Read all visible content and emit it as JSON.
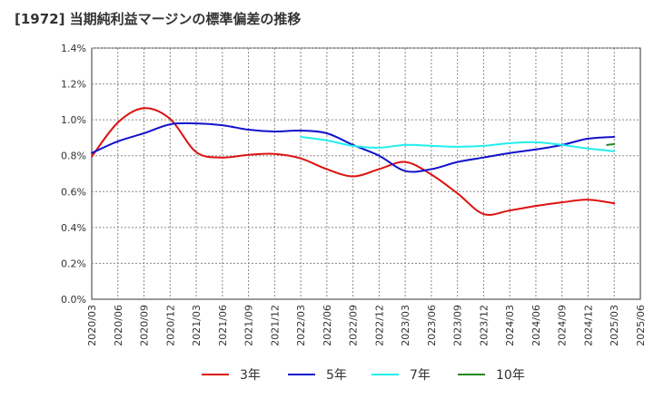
{
  "chart_data": {
    "type": "line",
    "title": "[1972]  当期純利益マージンの標準偏差の推移",
    "xlabel": "",
    "ylabel": "",
    "x": [
      "2020/03",
      "2020/06",
      "2020/09",
      "2020/12",
      "2021/03",
      "2021/06",
      "2021/09",
      "2021/12",
      "2022/03",
      "2022/06",
      "2022/09",
      "2022/12",
      "2023/03",
      "2023/06",
      "2023/09",
      "2023/12",
      "2024/03",
      "2024/06",
      "2024/09",
      "2024/12",
      "2025/03",
      "2025/06"
    ],
    "ylim": [
      0,
      0.014
    ],
    "yticks": [
      0.0,
      0.002,
      0.004,
      0.006,
      0.008,
      0.01,
      0.012,
      0.014
    ],
    "ytick_labels": [
      "0.0%",
      "0.2%",
      "0.4%",
      "0.6%",
      "0.8%",
      "1.0%",
      "1.2%",
      "1.4%"
    ],
    "grid": true,
    "legend_position": "bottom",
    "series": [
      {
        "name": "3年",
        "color": "#dd1111",
        "values": [
          0.00795,
          0.00985,
          0.01065,
          0.01005,
          0.0082,
          0.0079,
          0.00805,
          0.0081,
          0.00785,
          0.00725,
          0.00685,
          0.00725,
          0.00765,
          0.00695,
          0.0059,
          0.00475,
          0.00495,
          0.0052,
          0.0054,
          0.00555,
          0.00535,
          null
        ]
      },
      {
        "name": "5年",
        "color": "#1111cc",
        "values": [
          0.00815,
          0.0088,
          0.00925,
          0.00975,
          0.0098,
          0.0097,
          0.00945,
          0.00935,
          0.0094,
          0.00925,
          0.0086,
          0.008,
          0.00715,
          0.00725,
          0.00765,
          0.0079,
          0.00815,
          0.00835,
          0.0086,
          0.00895,
          0.00905,
          null
        ]
      },
      {
        "name": "7年",
        "color": "#22eeee",
        "values": [
          null,
          null,
          null,
          null,
          null,
          null,
          null,
          null,
          0.00905,
          0.00885,
          0.00855,
          0.00845,
          0.0086,
          0.00855,
          0.0085,
          0.00855,
          0.0087,
          0.00875,
          0.0086,
          0.0084,
          0.00825,
          null
        ]
      },
      {
        "name": "10年",
        "color": "#228822",
        "values": [
          null,
          null,
          null,
          null,
          null,
          null,
          null,
          null,
          null,
          null,
          null,
          null,
          null,
          null,
          null,
          null,
          null,
          null,
          null,
          null,
          0.0086,
          null
        ]
      }
    ],
    "series_tail": {
      "10年": [
        0.0086,
        0.00865
      ]
    }
  }
}
